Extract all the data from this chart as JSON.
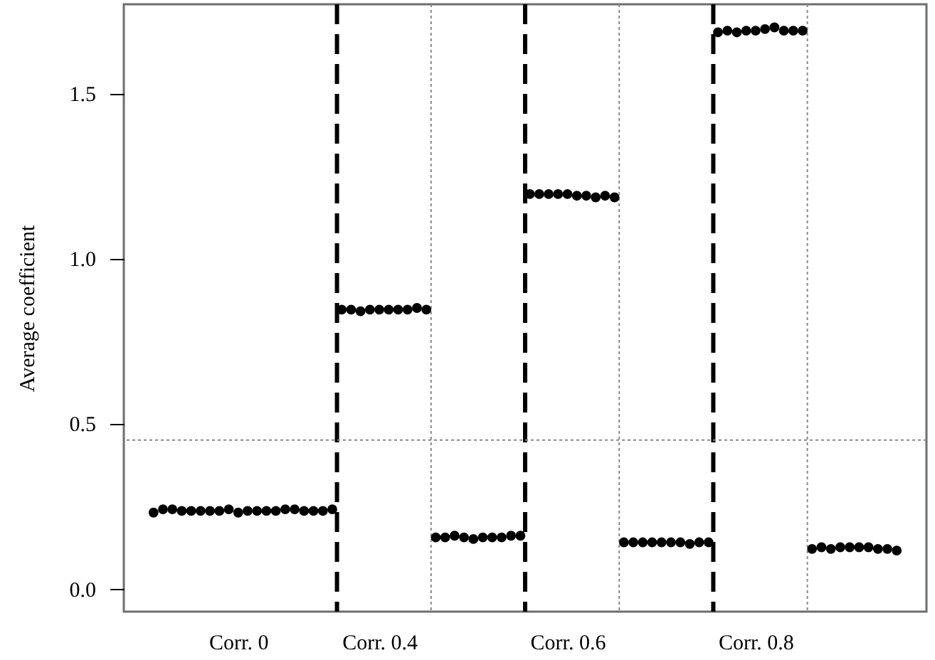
{
  "chart_data": {
    "type": "scatter",
    "ylabel": "Average coefficient",
    "categories": [
      null,
      null,
      null,
      null,
      null,
      null,
      null,
      null,
      null,
      "Corr. 0",
      null,
      null,
      null,
      null,
      null,
      null,
      null,
      null,
      null,
      null,
      null,
      null,
      null,
      null,
      "Corr. 0.4",
      null,
      null,
      null,
      null,
      null,
      null,
      null,
      null,
      null,
      null,
      null,
      null,
      null,
      null,
      null,
      null,
      null,
      null,
      null,
      "Corr. 0.6",
      null,
      null,
      null,
      null,
      null,
      null,
      null,
      null,
      null,
      null,
      null,
      null,
      null,
      null,
      null,
      null,
      null,
      null,
      null,
      "Corr. 0.8",
      null,
      null,
      null,
      null,
      null,
      null,
      null,
      null,
      null,
      null,
      null,
      null,
      null,
      null,
      null
    ],
    "series": [
      {
        "color": "#000000",
        "values": [
          0.23,
          0.24,
          0.24,
          0.235,
          0.235,
          0.235,
          0.235,
          0.235,
          0.24,
          0.23,
          0.235,
          0.235,
          0.235,
          0.235,
          0.24,
          0.24,
          0.235,
          0.235,
          0.235,
          0.24,
          0.845,
          0.845,
          0.84,
          0.845,
          0.845,
          0.845,
          0.845,
          0.845,
          0.85,
          0.845,
          0.155,
          0.155,
          0.16,
          0.155,
          0.15,
          0.155,
          0.155,
          0.155,
          0.16,
          0.16,
          1.195,
          1.195,
          1.195,
          1.195,
          1.195,
          1.19,
          1.19,
          1.185,
          1.19,
          1.185,
          0.14,
          0.14,
          0.14,
          0.14,
          0.14,
          0.14,
          0.14,
          0.135,
          0.14,
          0.14,
          1.685,
          1.69,
          1.685,
          1.69,
          1.69,
          1.695,
          1.7,
          1.69,
          1.69,
          1.69,
          0.12,
          0.125,
          0.12,
          0.125,
          0.125,
          0.125,
          0.125,
          0.12,
          0.12,
          0.115
        ]
      }
    ],
    "marker": "circle",
    "ylim": [
      -0.07,
      1.77
    ],
    "yticks": [
      {
        "value": 0,
        "label": "0.0"
      },
      0.5,
      {
        "value": 1,
        "label": "1.0"
      },
      1.5
    ],
    "ref_lines": [
      {
        "axis": "y",
        "value": 0.45,
        "color": "#888888",
        "line_style": "dotted"
      }
    ]
  }
}
